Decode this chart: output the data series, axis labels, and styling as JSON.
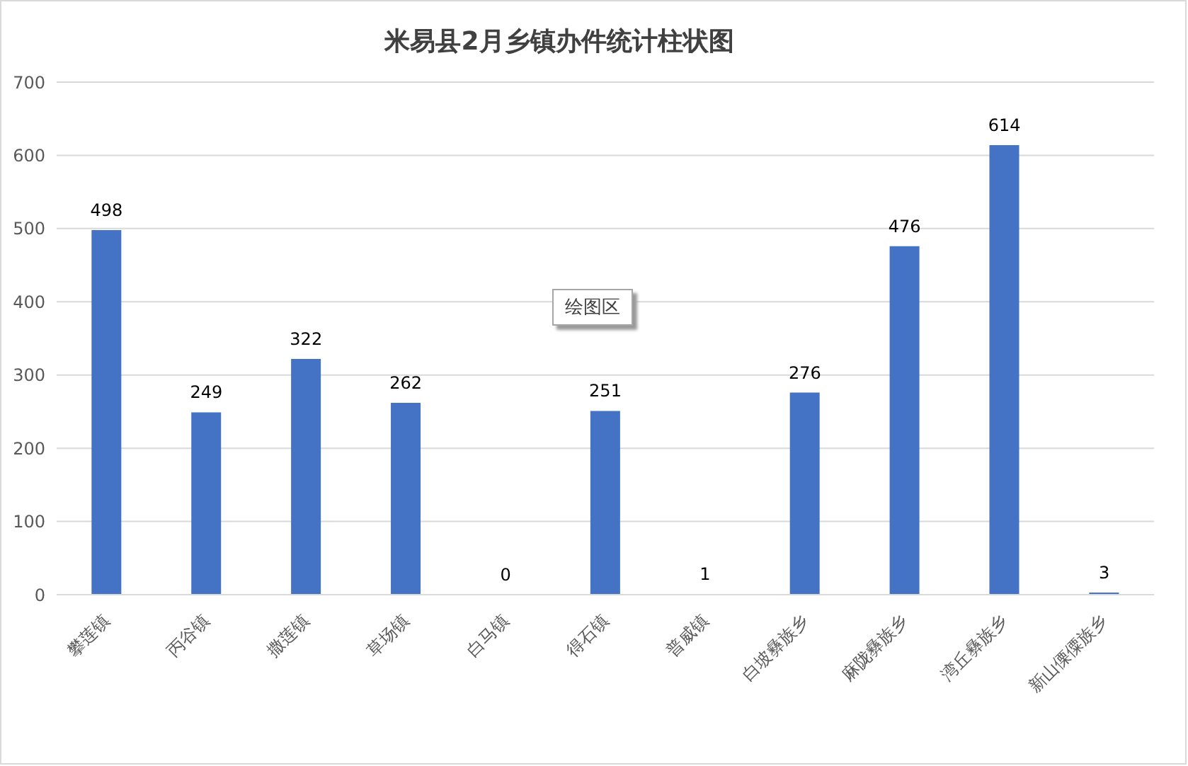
{
  "chart_data": {
    "type": "bar",
    "title": "米易县2月乡镇办件统计柱状图",
    "categories": [
      "攀莲镇",
      "丙谷镇",
      "撒莲镇",
      "草场镇",
      "白马镇",
      "得石镇",
      "普威镇",
      "白坡彝族乡",
      "麻陇彝族乡",
      "湾丘彝族乡",
      "新山傈僳族乡"
    ],
    "values": [
      498,
      249,
      322,
      262,
      0,
      251,
      1,
      276,
      476,
      614,
      3
    ],
    "color": "#4472c4",
    "ylim": [
      0,
      700
    ],
    "yticks": [
      0,
      100,
      200,
      300,
      400,
      500,
      600,
      700
    ],
    "grid": "y",
    "data_labels": true,
    "annotations": [
      "绘图区"
    ]
  }
}
